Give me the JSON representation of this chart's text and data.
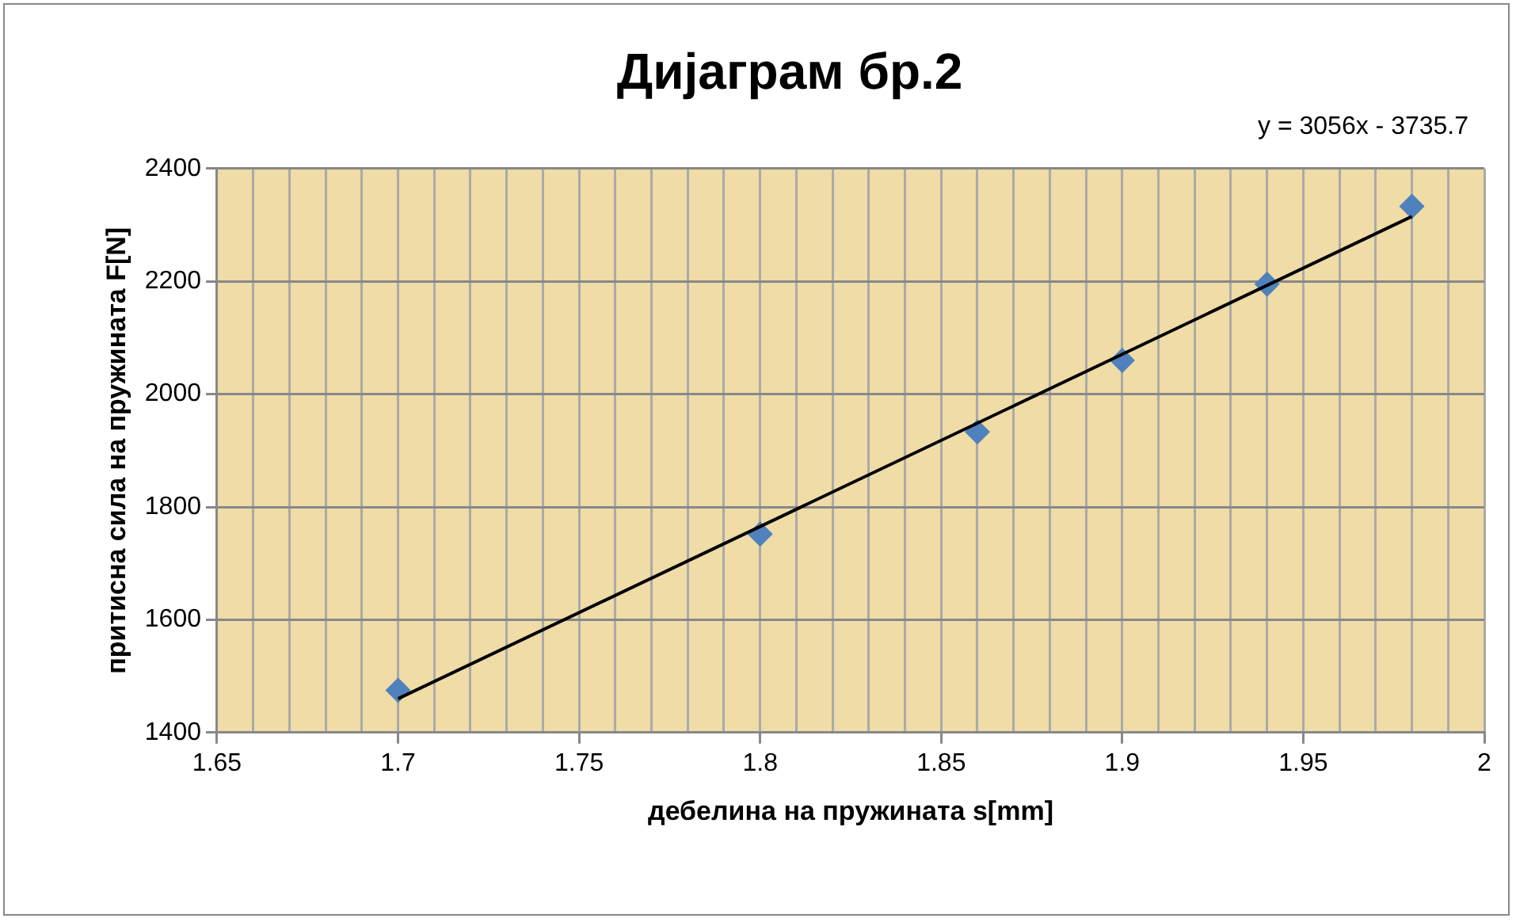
{
  "chart_data": {
    "type": "scatter",
    "title": "Дијаграм бр.2",
    "xlabel": "дебелина на пружината s[mm]",
    "ylabel": "притисна сила на пружината F[N]",
    "annotations": [
      "y = 3056x - 3735.7"
    ],
    "series": [
      {
        "color": "#4f81bd",
        "marker": "diamond",
        "x": [
          1.7,
          1.8,
          1.86,
          1.9,
          1.94,
          1.98
        ],
        "values": [
          1475,
          1752,
          1933,
          2060,
          2195,
          2333
        ]
      },
      {
        "type": "line",
        "color": "#000000",
        "marker": "none",
        "line_style": "solid",
        "x": [
          1.7,
          1.98
        ],
        "values": [
          1460,
          2315
        ]
      }
    ],
    "xlim": [
      1.65,
      2
    ],
    "xticks": [
      1.65,
      {
        "value": 1.66,
        "label": null
      },
      {
        "value": 1.67,
        "label": null
      },
      {
        "value": 1.68,
        "label": null
      },
      {
        "value": 1.69,
        "label": null
      },
      1.7,
      {
        "value": 1.71,
        "label": null
      },
      {
        "value": 1.72,
        "label": null
      },
      {
        "value": 1.73,
        "label": null
      },
      {
        "value": 1.74,
        "label": null
      },
      1.75,
      {
        "value": 1.76,
        "label": null
      },
      {
        "value": 1.77,
        "label": null
      },
      {
        "value": 1.78,
        "label": null
      },
      {
        "value": 1.79,
        "label": null
      },
      1.8,
      {
        "value": 1.81,
        "label": null
      },
      {
        "value": 1.82,
        "label": null
      },
      {
        "value": 1.83,
        "label": null
      },
      {
        "value": 1.84,
        "label": null
      },
      1.85,
      {
        "value": 1.86,
        "label": null
      },
      {
        "value": 1.87,
        "label": null
      },
      {
        "value": 1.88,
        "label": null
      },
      {
        "value": 1.89,
        "label": null
      },
      1.9,
      {
        "value": 1.91,
        "label": null
      },
      {
        "value": 1.92,
        "label": null
      },
      {
        "value": 1.93,
        "label": null
      },
      {
        "value": 1.94,
        "label": null
      },
      1.95,
      {
        "value": 1.96,
        "label": null
      },
      {
        "value": 1.97,
        "label": null
      },
      {
        "value": 1.98,
        "label": null
      },
      {
        "value": 1.99,
        "label": null
      },
      2
    ],
    "ylim": [
      1400,
      2400
    ],
    "yticks": [
      1400,
      1600,
      1800,
      2000,
      2200,
      2400
    ],
    "grid": true,
    "legend": false
  }
}
